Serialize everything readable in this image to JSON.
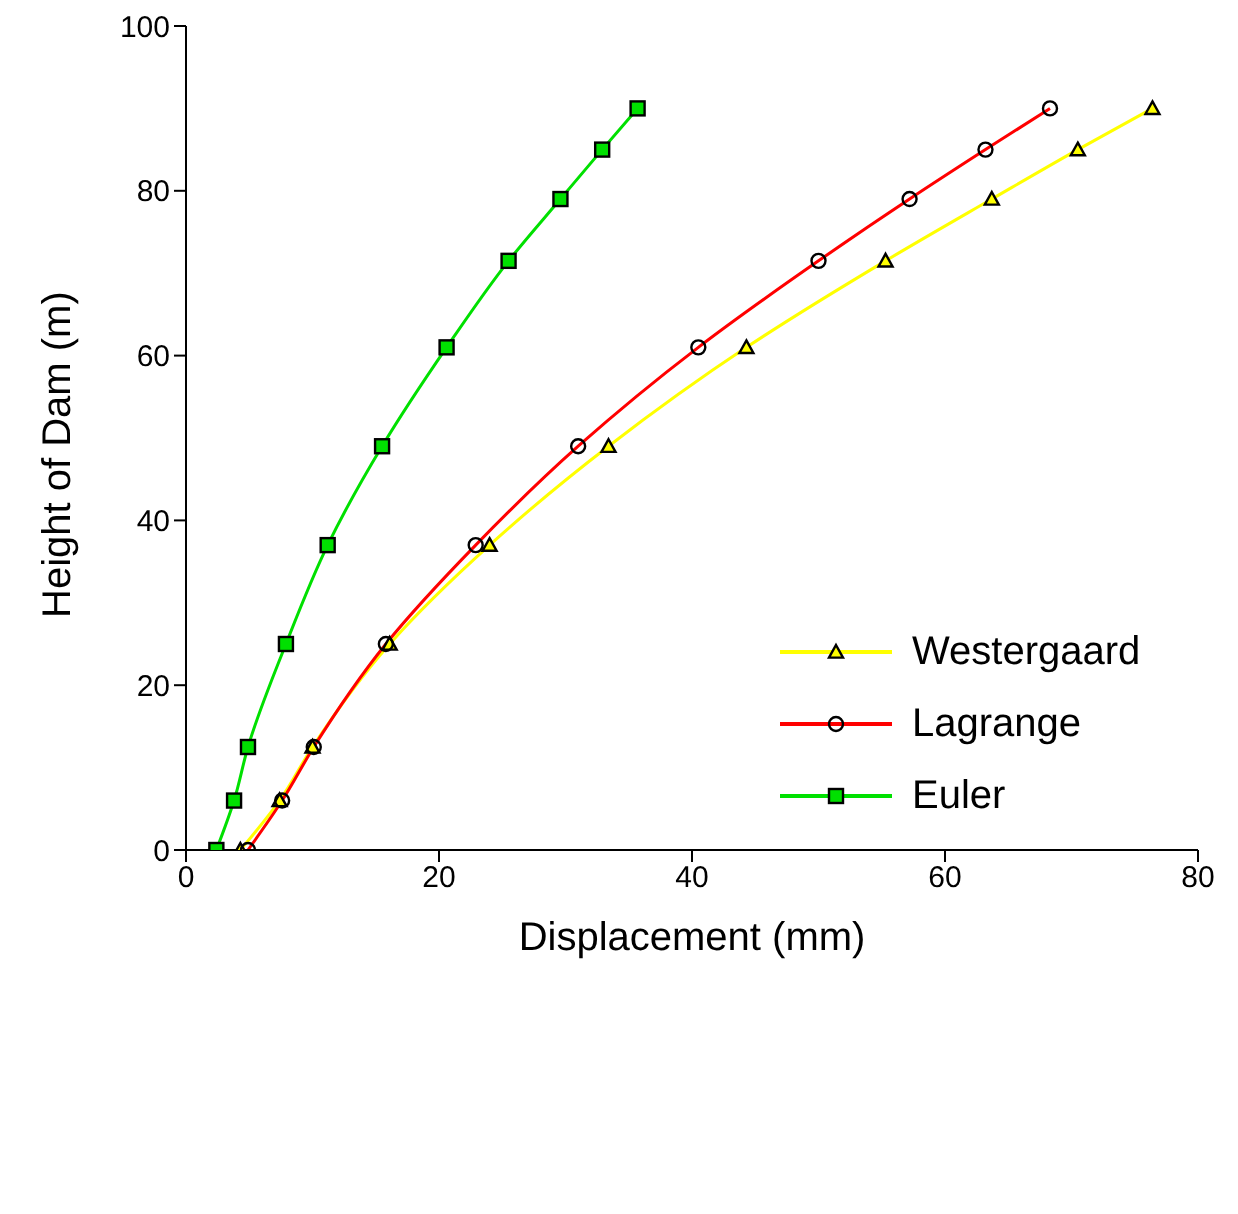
{
  "chart_data": {
    "type": "line",
    "xlabel": "Displacement (mm)",
    "ylabel": "Height of Dam (m)",
    "xlim": [
      0,
      80
    ],
    "xticks": [
      0,
      20,
      40,
      60,
      80
    ],
    "ylim": [
      0,
      100
    ],
    "yticks": [
      0,
      20,
      40,
      60,
      80,
      100
    ],
    "grid": false,
    "legend": "right",
    "line_style": "solid",
    "series": [
      {
        "name": "Westergaard",
        "color": "#ffff00",
        "marker": "triangle",
        "x": [
          4.3,
          7.4,
          10.0,
          16.1,
          24.0,
          33.4,
          44.3,
          55.3,
          63.7,
          70.5,
          76.4
        ],
        "values": [
          0,
          6,
          12.5,
          25,
          37,
          49,
          61,
          71.5,
          79,
          85,
          90
        ]
      },
      {
        "name": "Lagrange",
        "color": "#ff0000",
        "marker": "circle",
        "x": [
          4.9,
          7.6,
          10.1,
          15.8,
          22.9,
          31.0,
          40.5,
          50.0,
          57.2,
          63.2,
          68.3
        ],
        "values": [
          0,
          6,
          12.5,
          25,
          37,
          49,
          61,
          71.5,
          79,
          85,
          90
        ]
      },
      {
        "name": "Euler",
        "color": "#00e000",
        "marker": "square",
        "x": [
          2.4,
          3.8,
          4.9,
          7.9,
          11.2,
          15.5,
          20.6,
          25.5,
          29.6,
          32.9,
          35.7
        ],
        "values": [
          0,
          6,
          12.5,
          25,
          37,
          49,
          61,
          71.5,
          79,
          85,
          90
        ]
      }
    ]
  }
}
